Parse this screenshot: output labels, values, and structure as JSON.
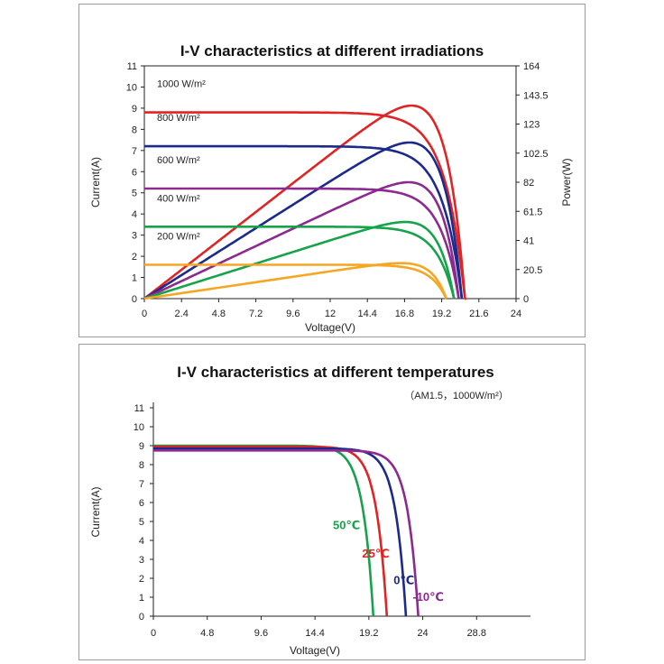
{
  "chart_data": [
    {
      "type": "line",
      "title": "I-V characteristics at different irradiations",
      "xlabel": "Voltage(V)",
      "ylabel": "Current(A)",
      "y2label": "Power(W)",
      "xlim": [
        0,
        24
      ],
      "ylim": [
        0,
        11
      ],
      "y2lim": [
        0,
        164
      ],
      "xticks": [
        "0",
        "2.4",
        "4.8",
        "7.2",
        "9.6",
        "12",
        "14.4",
        "16.8",
        "19.2",
        "21.6",
        "24"
      ],
      "yticks": [
        "0",
        "1",
        "2",
        "3",
        "4",
        "5",
        "6",
        "7",
        "8",
        "9",
        "10",
        "11"
      ],
      "y2ticks": [
        "0",
        "20.5",
        "41",
        "61.5",
        "82",
        "102.5",
        "123",
        "143.5",
        "164"
      ],
      "grid": false,
      "series": [
        {
          "name": "1000 W/m²",
          "color": "#e02424",
          "isc": 8.8,
          "voc": 20.7,
          "vmp": 17.2,
          "pmax": 136
        },
        {
          "name": "800 W/m²",
          "color": "#1c2a8c",
          "isc": 7.2,
          "voc": 20.5,
          "vmp": 17.1,
          "pmax": 110
        },
        {
          "name": "600 W/m²",
          "color": "#8b2a8f",
          "isc": 5.2,
          "voc": 20.3,
          "vmp": 17.1,
          "pmax": 82
        },
        {
          "name": "400 W/m²",
          "color": "#16a34a",
          "isc": 3.4,
          "voc": 20.0,
          "vmp": 16.9,
          "pmax": 54
        },
        {
          "name": "200 W/m²",
          "color": "#f5a623",
          "isc": 1.6,
          "voc": 19.5,
          "vmp": 16.7,
          "pmax": 25
        }
      ]
    },
    {
      "type": "line",
      "title": "I-V characteristics at different temperatures",
      "subtitle": "（AM1.5，1000W/m²）",
      "xlabel": "Voltage(V)",
      "ylabel": "Current(A)",
      "xlim": [
        0,
        33.6
      ],
      "ylim": [
        0,
        11
      ],
      "xticks": [
        "0",
        "4.8",
        "9.6",
        "14.4",
        "19.2",
        "24",
        "28.8"
      ],
      "yticks": [
        "0",
        "1",
        "2",
        "3",
        "4",
        "5",
        "6",
        "7",
        "8",
        "9",
        "10",
        "11"
      ],
      "grid": false,
      "series": [
        {
          "name": "50℃",
          "color": "#16a34a",
          "isc": 9.0,
          "voc": 19.6
        },
        {
          "name": "25℃",
          "color": "#e02424",
          "isc": 8.95,
          "voc": 20.8
        },
        {
          "name": "0℃",
          "color": "#1c2a8c",
          "isc": 8.85,
          "voc": 22.5
        },
        {
          "name": "-10℃",
          "color": "#8b2a8f",
          "isc": 8.75,
          "voc": 23.6
        }
      ]
    }
  ]
}
